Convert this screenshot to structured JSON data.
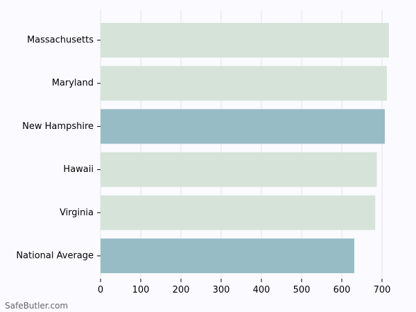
{
  "chart_data": {
    "type": "bar",
    "orientation": "horizontal",
    "categories": [
      "Massachusetts",
      "Maryland",
      "New Hampshire",
      "Hawaii",
      "Virginia",
      "National Average"
    ],
    "values": [
      717,
      712,
      707,
      687,
      683,
      631
    ],
    "highlight": [
      "New Hampshire",
      "National Average"
    ],
    "xlim": [
      0,
      750
    ],
    "xticks": [
      0,
      100,
      200,
      300,
      400,
      500,
      600,
      700
    ],
    "grid": true,
    "title": "",
    "xlabel": "",
    "ylabel": ""
  },
  "colors": {
    "bar": "#d5e3d9",
    "highlight": "#98bcc5",
    "grid": "#e6e6e6",
    "axis": "#000000",
    "background": "#fafaff"
  },
  "watermark": "SafeButler.com"
}
